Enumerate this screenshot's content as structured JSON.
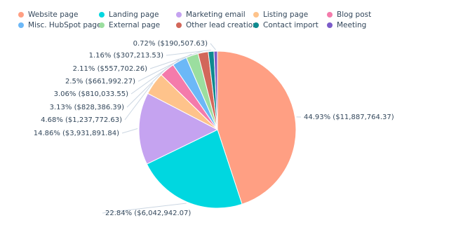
{
  "chart_data": {
    "type": "pie",
    "categories": [
      "Website page",
      "Landing page",
      "Marketing email",
      "Listing page",
      "Blog post",
      "Misc. HubSpot page",
      "External page",
      "Other lead creation",
      "Contact import",
      "Meeting"
    ],
    "values": [
      44.93,
      22.84,
      14.86,
      4.68,
      3.13,
      3.06,
      2.5,
      2.11,
      1.16,
      0.72
    ],
    "value_labels": [
      "44.93% ($11,887,764.37)",
      "22.84% ($6,042,942.07)",
      "14.86% ($3,931,891.84)",
      "4.68% ($1,237,772.63)",
      "3.13% ($828,386.39)",
      "3.06% ($810,033.55)",
      "2.5% ($661,992.27)",
      "2.11% ($557,702.26)",
      "1.16% ($307,213.53)",
      "0.72% ($190,507.63)"
    ],
    "colors": [
      "#ff9f83",
      "#00d7e0",
      "#c5a3f0",
      "#fec38b",
      "#f47bab",
      "#6cb8f7",
      "#9bde9f",
      "#d2675a",
      "#0f8a8f",
      "#7c5cc9"
    ]
  }
}
